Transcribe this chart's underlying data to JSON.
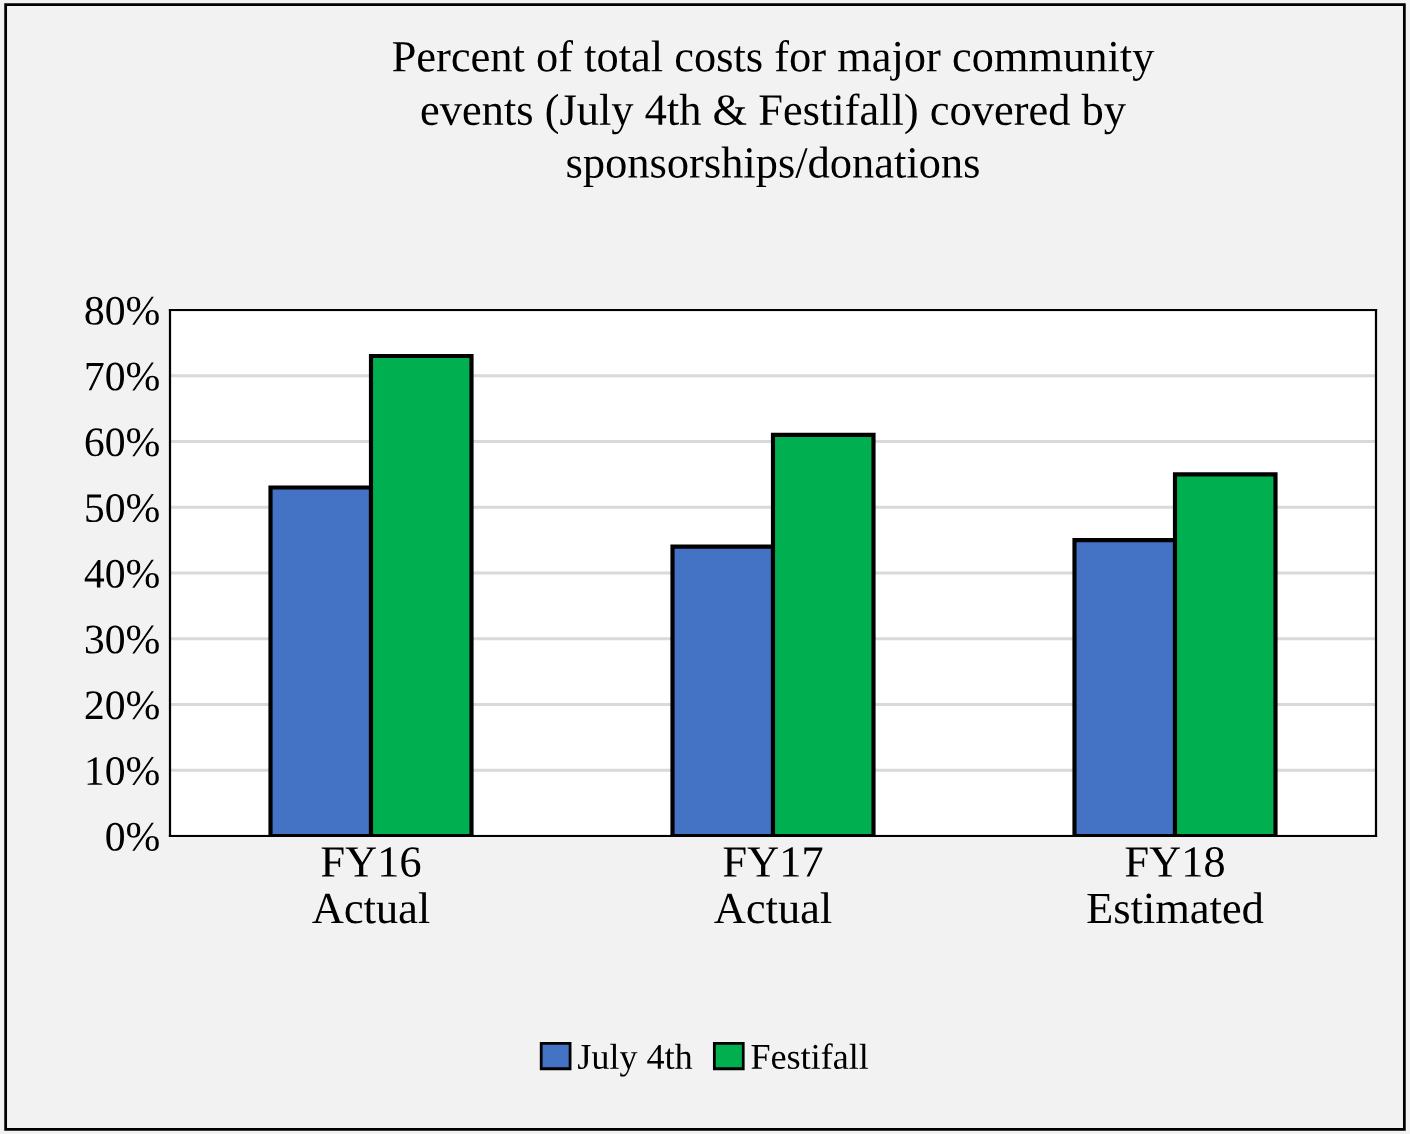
{
  "chart_data": {
    "type": "bar",
    "title": "Percent of total costs for major community\nevents (July 4th & Festifall) covered by\nsponsorships/donations",
    "categories": [
      "FY16\nActual",
      "FY17\nActual",
      "FY18\nEstimated"
    ],
    "series": [
      {
        "name": "July 4th",
        "color": "#4472c4",
        "values": [
          53,
          44,
          45
        ]
      },
      {
        "name": "Festifall",
        "color": "#00b050",
        "values": [
          73,
          61,
          55
        ]
      }
    ],
    "ylim": [
      0,
      80
    ],
    "yticks": [
      {
        "value": 0,
        "label": "0%"
      },
      {
        "value": 10,
        "label": "10%"
      },
      {
        "value": 20,
        "label": "20%"
      },
      {
        "value": 30,
        "label": "30%"
      },
      {
        "value": 40,
        "label": "40%"
      },
      {
        "value": 50,
        "label": "50%"
      },
      {
        "value": 60,
        "label": "60%"
      },
      {
        "value": 70,
        "label": "70%"
      },
      {
        "value": 80,
        "label": "80%"
      }
    ],
    "grid": "y",
    "legend": "bottom"
  }
}
